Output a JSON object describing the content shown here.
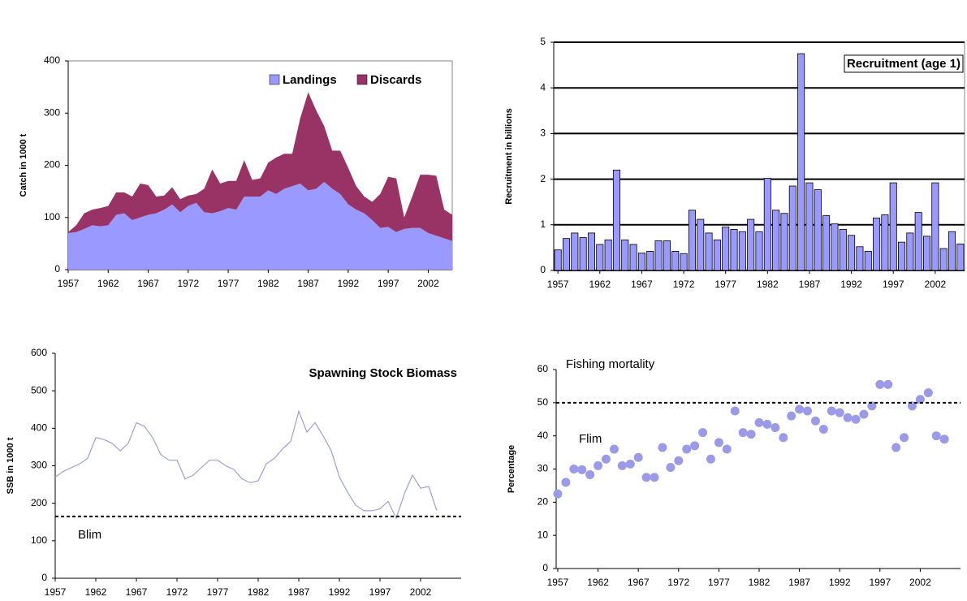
{
  "chart_data": [
    {
      "type": "area",
      "stacked": true,
      "ylabel": "Catch in 1000 t",
      "legend": "upper right",
      "x": [
        1957,
        1958,
        1959,
        1960,
        1961,
        1962,
        1963,
        1964,
        1965,
        1966,
        1967,
        1968,
        1969,
        1970,
        1971,
        1972,
        1973,
        1974,
        1975,
        1976,
        1977,
        1978,
        1979,
        1980,
        1981,
        1982,
        1983,
        1984,
        1985,
        1986,
        1987,
        1988,
        1989,
        1990,
        1991,
        1992,
        1993,
        1994,
        1995,
        1996,
        1997,
        1998,
        1999,
        2000,
        2001,
        2002,
        2003,
        2004,
        2005
      ],
      "series": [
        {
          "name": "Landings",
          "color": "#9999ff",
          "values": [
            70,
            72,
            78,
            85,
            83,
            85,
            105,
            108,
            95,
            100,
            105,
            108,
            115,
            125,
            110,
            122,
            128,
            110,
            108,
            112,
            118,
            115,
            140,
            140,
            140,
            152,
            145,
            155,
            160,
            165,
            152,
            155,
            168,
            155,
            145,
            125,
            115,
            108,
            95,
            80,
            82,
            72,
            78,
            80,
            80,
            70,
            65,
            60,
            55
          ]
        },
        {
          "name": "Discards",
          "color": "#993366",
          "values": [
            2,
            13,
            30,
            30,
            35,
            37,
            43,
            40,
            45,
            65,
            57,
            32,
            27,
            33,
            25,
            20,
            17,
            45,
            84,
            53,
            52,
            55,
            70,
            32,
            35,
            53,
            70,
            67,
            62,
            125,
            188,
            150,
            107,
            73,
            83,
            70,
            45,
            32,
            35,
            65,
            96,
            103,
            22,
            60,
            102,
            112,
            115,
            55,
            50
          ]
        }
      ],
      "xlim": [
        1957,
        2005
      ],
      "xticks": [
        1957,
        1962,
        1967,
        1972,
        1977,
        1982,
        1987,
        1992,
        1997,
        2002
      ],
      "ylim": [
        0,
        400
      ],
      "yticks": [
        0,
        100,
        200,
        300,
        400
      ],
      "grid": false
    },
    {
      "type": "bar",
      "title": "Recruitment (age 1)",
      "ylabel": "Recruitment in billions",
      "color": "#9999ff",
      "x": [
        1957,
        1958,
        1959,
        1960,
        1961,
        1962,
        1963,
        1964,
        1965,
        1966,
        1967,
        1968,
        1969,
        1970,
        1971,
        1972,
        1973,
        1974,
        1975,
        1976,
        1977,
        1978,
        1979,
        1980,
        1981,
        1982,
        1983,
        1984,
        1985,
        1986,
        1987,
        1988,
        1989,
        1990,
        1991,
        1992,
        1993,
        1994,
        1995,
        1996,
        1997,
        1998,
        1999,
        2000,
        2001,
        2002,
        2003,
        2004,
        2005
      ],
      "values": [
        0.45,
        0.7,
        0.82,
        0.72,
        0.82,
        0.57,
        0.67,
        2.2,
        0.67,
        0.57,
        0.38,
        0.42,
        0.65,
        0.65,
        0.42,
        0.37,
        1.32,
        1.12,
        0.82,
        0.67,
        0.95,
        0.9,
        0.85,
        1.12,
        0.85,
        2.02,
        1.32,
        1.25,
        1.85,
        4.75,
        1.92,
        1.77,
        1.2,
        1.02,
        0.9,
        0.77,
        0.52,
        0.42,
        1.15,
        1.22,
        1.92,
        0.62,
        0.82,
        1.27,
        0.75,
        1.92,
        0.48,
        0.85,
        0.58
      ],
      "xlim": [
        1956.5,
        2005.5
      ],
      "xticks": [
        1957,
        1962,
        1967,
        1972,
        1977,
        1982,
        1987,
        1992,
        1997,
        2002
      ],
      "ylim": [
        0,
        5
      ],
      "yticks": [
        0,
        1,
        2,
        3,
        4,
        5
      ],
      "grid": true
    },
    {
      "type": "line",
      "title": "Spawning Stock Biomass",
      "ylabel": "SSB in 1000 t",
      "color": "#a0a0d8",
      "reference": {
        "label": "Blim",
        "value": 165
      },
      "x": [
        1957,
        1958,
        1959,
        1960,
        1961,
        1962,
        1963,
        1964,
        1965,
        1966,
        1967,
        1968,
        1969,
        1970,
        1971,
        1972,
        1973,
        1974,
        1975,
        1976,
        1977,
        1978,
        1979,
        1980,
        1981,
        1982,
        1983,
        1984,
        1985,
        1986,
        1987,
        1988,
        1989,
        1990,
        1991,
        1992,
        1993,
        1994,
        1995,
        1996,
        1997,
        1998,
        1999,
        2000,
        2001,
        2002,
        2003,
        2004
      ],
      "values": [
        270,
        285,
        295,
        305,
        320,
        375,
        370,
        360,
        340,
        360,
        415,
        405,
        375,
        330,
        315,
        315,
        265,
        275,
        295,
        315,
        315,
        300,
        290,
        265,
        255,
        260,
        305,
        320,
        345,
        365,
        445,
        390,
        415,
        380,
        340,
        270,
        230,
        195,
        180,
        180,
        185,
        205,
        160,
        225,
        275,
        240,
        245,
        180
      ],
      "xlim": [
        1957,
        2007
      ],
      "xticks": [
        1957,
        1962,
        1967,
        1972,
        1977,
        1982,
        1987,
        1992,
        1997,
        2002
      ],
      "ylim": [
        0,
        600
      ],
      "yticks": [
        0,
        100,
        200,
        300,
        400,
        500,
        600
      ],
      "grid": false
    },
    {
      "type": "scatter",
      "title": "Fishing mortality",
      "ylabel": "Percentage",
      "color": "#9a9ae8",
      "reference": {
        "label": "Flim",
        "value": 50
      },
      "x": [
        1957,
        1958,
        1959,
        1960,
        1961,
        1962,
        1963,
        1964,
        1965,
        1966,
        1967,
        1968,
        1969,
        1970,
        1971,
        1972,
        1973,
        1974,
        1975,
        1976,
        1977,
        1978,
        1979,
        1980,
        1981,
        1982,
        1983,
        1984,
        1985,
        1986,
        1987,
        1988,
        1989,
        1990,
        1991,
        1992,
        1993,
        1994,
        1995,
        1996,
        1997,
        1998,
        1999,
        2000,
        2001,
        2002,
        2003,
        2004,
        2005
      ],
      "values": [
        22.5,
        26,
        30,
        29.8,
        28.3,
        31,
        33,
        36,
        31,
        31.5,
        33.5,
        27.5,
        27.5,
        36.5,
        30.5,
        32.5,
        36,
        37,
        41,
        33,
        38,
        36,
        47.5,
        41,
        40.5,
        44,
        43.5,
        42.5,
        39.5,
        46,
        48,
        47.5,
        44.5,
        42,
        47.5,
        47,
        45.5,
        45,
        46.5,
        49,
        55.5,
        55.5,
        36.5,
        39.5,
        49,
        51,
        53,
        40,
        39
      ],
      "xlim": [
        1956.8,
        2007
      ],
      "xticks": [
        1957,
        1962,
        1967,
        1972,
        1977,
        1982,
        1987,
        1992,
        1997,
        2002
      ],
      "ylim": [
        0,
        60
      ],
      "yticks": [
        0,
        10,
        20,
        30,
        40,
        50,
        60
      ],
      "grid": false
    }
  ]
}
